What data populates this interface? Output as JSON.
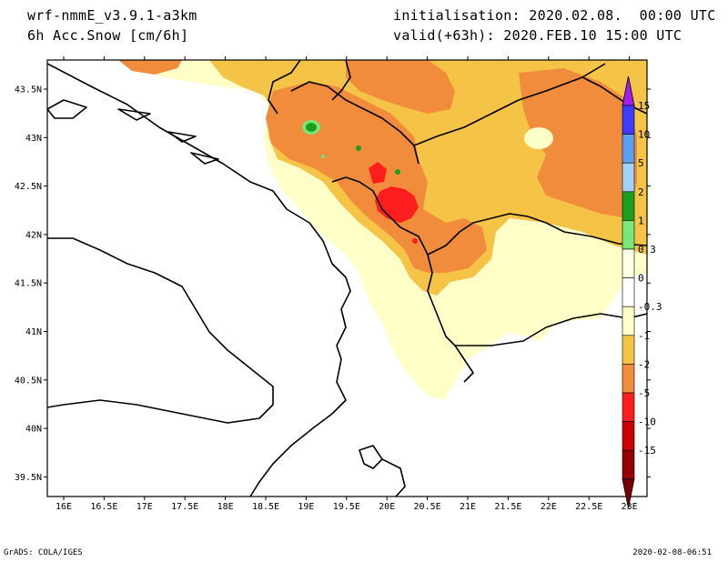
{
  "header": {
    "model": "wrf-nmmE_v3.9.1-a3km",
    "field": "6h Acc.Snow [cm/6h]",
    "init": "initialisation: 2020.02.08.  00:00 UTC",
    "valid": "valid(+63h): 2020.FEB.10 15:00 UTC"
  },
  "footer": {
    "credit": "GrADS: COLA/IGES",
    "stamp": "2020-02-08-06:51"
  },
  "axes": {
    "lat_labels": [
      "43.5N",
      "43N",
      "42.5N",
      "42N",
      "41.5N",
      "41N",
      "40.5N",
      "40N",
      "39.5N"
    ],
    "lon_labels": [
      "16E",
      "16.5E",
      "17E",
      "17.5E",
      "18E",
      "18.5E",
      "19E",
      "19.5E",
      "20E",
      "20.5E",
      "21E",
      "21.5E",
      "22E",
      "22.5E",
      "23E"
    ]
  },
  "colorbar": {
    "levels": [
      "15",
      "10",
      "5",
      "2",
      "1",
      "0.3",
      "0",
      "-0.3",
      "-1",
      "-2",
      "-5",
      "-10",
      "-15"
    ],
    "colors": [
      "#a020f0",
      "#3c3cff",
      "#5aa0f0",
      "#a0d2fa",
      "#1e9e1e",
      "#78e678",
      "#ffffe6",
      "#ffffff",
      "#ffffc8",
      "#f5c346",
      "#f08c3c",
      "#ff1e1e",
      "#cc0000",
      "#960000",
      "#780000"
    ]
  },
  "map_colors": {
    "light_snow": "#ffffc8",
    "moderate_snow": "#f5c346",
    "heavy_snow": "#f08c3c",
    "very_heavy_snow": "#ff1e1e",
    "green_small": "#1e9e1e",
    "green_light": "#78e678"
  }
}
